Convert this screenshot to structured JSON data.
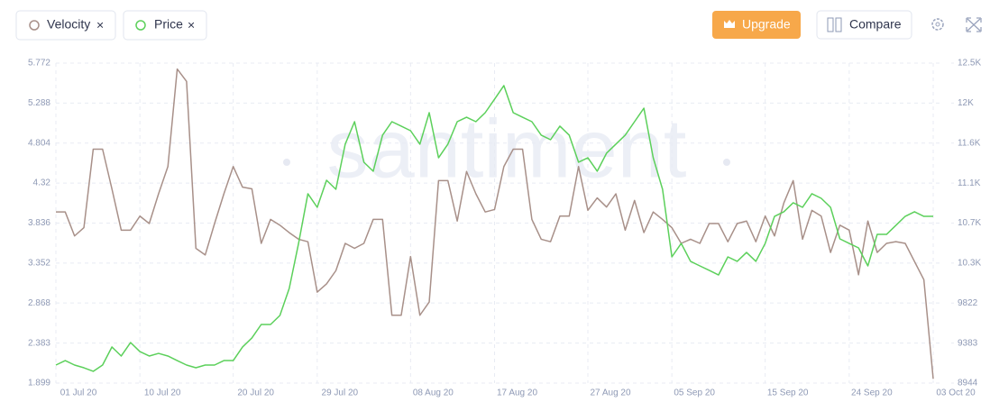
{
  "toolbar": {
    "upgrade": "Upgrade",
    "compare": "Compare",
    "close": "×"
  },
  "chart_data": {
    "type": "line",
    "watermark": "santiment",
    "x": [
      "01 Jul 20",
      "02 Jul 20",
      "03 Jul 20",
      "04 Jul 20",
      "05 Jul 20",
      "06 Jul 20",
      "07 Jul 20",
      "08 Jul 20",
      "09 Jul 20",
      "10 Jul 20",
      "11 Jul 20",
      "12 Jul 20",
      "13 Jul 20",
      "14 Jul 20",
      "15 Jul 20",
      "16 Jul 20",
      "17 Jul 20",
      "18 Jul 20",
      "19 Jul 20",
      "20 Jul 20",
      "21 Jul 20",
      "22 Jul 20",
      "23 Jul 20",
      "24 Jul 20",
      "25 Jul 20",
      "26 Jul 20",
      "27 Jul 20",
      "28 Jul 20",
      "29 Jul 20",
      "30 Jul 20",
      "31 Jul 20",
      "01 Aug 20",
      "02 Aug 20",
      "03 Aug 20",
      "04 Aug 20",
      "05 Aug 20",
      "06 Aug 20",
      "07 Aug 20",
      "08 Aug 20",
      "09 Aug 20",
      "10 Aug 20",
      "11 Aug 20",
      "12 Aug 20",
      "13 Aug 20",
      "14 Aug 20",
      "15 Aug 20",
      "16 Aug 20",
      "17 Aug 20",
      "18 Aug 20",
      "19 Aug 20",
      "20 Aug 20",
      "21 Aug 20",
      "22 Aug 20",
      "23 Aug 20",
      "24 Aug 20",
      "25 Aug 20",
      "26 Aug 20",
      "27 Aug 20",
      "28 Aug 20",
      "29 Aug 20",
      "30 Aug 20",
      "31 Aug 20",
      "01 Sep 20",
      "02 Sep 20",
      "03 Sep 20",
      "04 Sep 20",
      "05 Sep 20",
      "06 Sep 20",
      "07 Sep 20",
      "08 Sep 20",
      "09 Sep 20",
      "10 Sep 20",
      "11 Sep 20",
      "12 Sep 20",
      "13 Sep 20",
      "14 Sep 20",
      "15 Sep 20",
      "16 Sep 20",
      "17 Sep 20",
      "18 Sep 20",
      "19 Sep 20",
      "20 Sep 20",
      "21 Sep 20",
      "22 Sep 20",
      "23 Sep 20",
      "24 Sep 20",
      "25 Sep 20",
      "26 Sep 20",
      "27 Sep 20",
      "28 Sep 20",
      "29 Sep 20",
      "30 Sep 20",
      "01 Oct 20",
      "02 Oct 20",
      "03 Oct 20"
    ],
    "xticks": [
      "01 Jul 20",
      "10 Jul 20",
      "20 Jul 20",
      "29 Jul 20",
      "08 Aug 20",
      "17 Aug 20",
      "27 Aug 20",
      "05 Sep 20",
      "15 Sep 20",
      "24 Sep 20",
      "03 Oct 20"
    ],
    "ylim": [
      1.899,
      5.772
    ],
    "yticks": [
      1.899,
      2.383,
      2.868,
      3.352,
      3.836,
      4.32,
      4.804,
      5.288,
      5.772
    ],
    "y2lim": [
      8944,
      12456
    ],
    "y2ticks": [
      8944,
      9383,
      9822,
      {
        "value": 10261,
        "label": "10.3K"
      },
      {
        "value": 10700,
        "label": "10.7K"
      },
      {
        "value": 11139,
        "label": "11.1K"
      },
      {
        "value": 11578,
        "label": "11.6K"
      },
      {
        "value": 12017,
        "label": "12K"
      },
      {
        "value": 12456,
        "label": "12.5K"
      }
    ],
    "grid": true,
    "series": [
      {
        "name": "Velocity",
        "color": "#a89089",
        "values": [
          3.97,
          3.97,
          3.68,
          3.78,
          4.73,
          4.73,
          4.25,
          3.75,
          3.75,
          3.92,
          3.83,
          4.19,
          4.52,
          5.7,
          5.55,
          3.53,
          3.45,
          3.83,
          4.19,
          4.52,
          4.27,
          4.25,
          3.59,
          3.88,
          3.81,
          3.72,
          3.64,
          3.61,
          3.0,
          3.1,
          3.26,
          3.59,
          3.53,
          3.59,
          3.88,
          3.88,
          2.72,
          2.72,
          3.43,
          2.72,
          2.88,
          4.35,
          4.35,
          3.86,
          4.46,
          4.19,
          3.97,
          4.0,
          4.52,
          4.73,
          4.73,
          3.88,
          3.64,
          3.61,
          3.92,
          3.92,
          4.52,
          3.99,
          4.14,
          4.03,
          4.19,
          3.75,
          4.11,
          3.72,
          3.97,
          3.88,
          3.78,
          3.59,
          3.64,
          3.59,
          3.83,
          3.83,
          3.61,
          3.83,
          3.86,
          3.61,
          3.92,
          3.68,
          4.08,
          4.35,
          3.64,
          3.99,
          3.92,
          3.48,
          3.81,
          3.75,
          3.21,
          3.86,
          3.48,
          3.59,
          3.61,
          3.59,
          3.37,
          3.15,
          1.95
        ]
      },
      {
        "name": "Price",
        "color": "#5cd05b",
        "axis": "y2",
        "values": [
          9142,
          9191,
          9142,
          9112,
          9073,
          9142,
          9340,
          9241,
          9389,
          9290,
          9241,
          9270,
          9241,
          9191,
          9142,
          9112,
          9142,
          9142,
          9191,
          9191,
          9340,
          9439,
          9587,
          9587,
          9686,
          9983,
          10477,
          11022,
          10873,
          11170,
          11071,
          11566,
          11813,
          11368,
          11269,
          11665,
          11813,
          11764,
          11714,
          11566,
          11912,
          11417,
          11566,
          11813,
          11862,
          11813,
          11912,
          12060,
          12209,
          11912,
          11862,
          11813,
          11665,
          11615,
          11764,
          11665,
          11368,
          11417,
          11269,
          11467,
          11566,
          11665,
          11813,
          11961,
          11417,
          11071,
          10329,
          10477,
          10280,
          10230,
          10181,
          10131,
          10329,
          10280,
          10378,
          10280,
          10477,
          10774,
          10824,
          10923,
          10873,
          11022,
          10972,
          10873,
          10527,
          10477,
          10428,
          10230,
          10576,
          10576,
          10675,
          10774,
          10824,
          10774,
          10774
        ]
      }
    ]
  }
}
